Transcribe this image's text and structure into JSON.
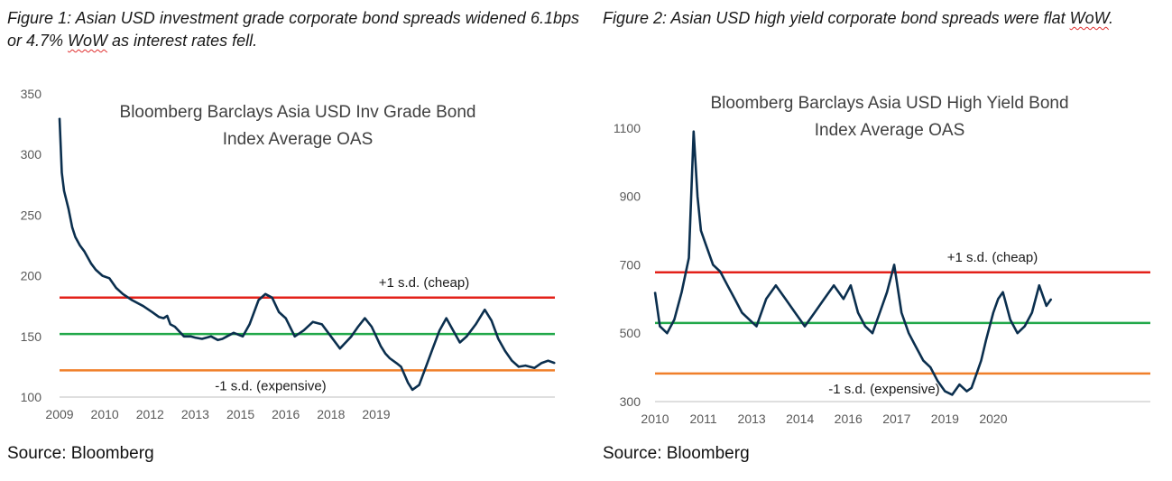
{
  "figure1": {
    "caption_text": "Figure 1: Asian USD investment grade corporate bond spreads widened 6.1bps or 4.7% ",
    "caption_wavy": "WoW",
    "caption_tail": " as interest rates fell.",
    "source": "Source: Bloomberg"
  },
  "figure2": {
    "caption_text": "Figure 2: Asian USD high yield corporate bond spreads were flat ",
    "caption_wavy": "WoW",
    "caption_tail": ".",
    "source": "Source: Bloomberg"
  },
  "colors": {
    "series": "#0b2f4e",
    "plus1sd": "#e32119",
    "mean": "#21a84a",
    "minus1sd": "#f07f2a",
    "tick": "#595959"
  },
  "chart_data": [
    {
      "type": "line",
      "title_lines": [
        "Bloomberg  Barclays Asia USD Inv Grade Bond",
        "Index Average OAS"
      ],
      "xlim": [
        2009,
        2019.95
      ],
      "ylim": [
        100,
        350
      ],
      "x_ticks": [
        {
          "label": "2009",
          "x": 2009.0
        },
        {
          "label": "2010",
          "x": 2010.0
        },
        {
          "label": "2012",
          "x": 2011.0
        },
        {
          "label": "2013",
          "x": 2012.0
        },
        {
          "label": "2015",
          "x": 2013.0
        },
        {
          "label": "2016",
          "x": 2014.0
        },
        {
          "label": "2018",
          "x": 2015.0
        },
        {
          "label": "2019",
          "x": 2016.0
        }
      ],
      "y_ticks": [
        100,
        150,
        200,
        250,
        300,
        350
      ],
      "series": [
        {
          "x": [
            2009.0,
            2009.05,
            2009.1,
            2009.2,
            2009.28,
            2009.35,
            2009.45,
            2009.55,
            2009.7,
            2009.8,
            2009.95,
            2010.1,
            2010.25,
            2010.4,
            2010.6,
            2010.85,
            2011.05,
            2011.2,
            2011.3,
            2011.38,
            2011.45,
            2011.55,
            2011.75,
            2011.9,
            2012.0,
            2012.15,
            2012.35,
            2012.5,
            2012.6,
            2012.7,
            2012.85,
            2013.05,
            2013.2,
            2013.4,
            2013.55,
            2013.7,
            2013.85,
            2014.0,
            2014.2,
            2014.4,
            2014.6,
            2014.8,
            2015.0,
            2015.2,
            2015.45,
            2015.6,
            2015.75,
            2015.9,
            2016.0,
            2016.1,
            2016.2,
            2016.3,
            2016.45,
            2016.55,
            2016.7,
            2016.8,
            2016.95,
            2017.1,
            2017.25,
            2017.4,
            2017.55,
            2017.7,
            2017.85,
            2018.0,
            2018.2,
            2018.4,
            2018.55,
            2018.7,
            2018.85,
            2019.0,
            2019.15,
            2019.3,
            2019.5,
            2019.65,
            2019.8,
            2019.95
          ],
          "y": [
            330,
            285,
            270,
            255,
            240,
            232,
            225,
            220,
            210,
            205,
            200,
            198,
            190,
            185,
            180,
            175,
            170,
            166,
            165,
            167,
            160,
            158,
            150,
            150,
            149,
            148,
            150,
            147,
            148,
            150,
            153,
            150,
            160,
            180,
            185,
            182,
            170,
            165,
            150,
            155,
            162,
            160,
            150,
            140,
            150,
            158,
            165,
            158,
            150,
            142,
            136,
            132,
            128,
            125,
            112,
            106,
            110,
            125,
            140,
            155,
            165,
            155,
            145,
            150,
            160,
            172,
            163,
            148,
            138,
            130,
            125,
            126,
            124,
            128,
            130,
            128
          ],
          "values_note": "approximate"
        }
      ],
      "reference_lines": [
        {
          "label": "+1 s.d. (cheap)",
          "y": 182
        },
        {
          "label": "",
          "y": 152
        },
        {
          "label": "-1 s.d. (expensive)",
          "y": 122
        }
      ]
    },
    {
      "type": "line",
      "title_lines": [
        "Bloomberg  Barclays Asia USD High Yield Bond",
        "Index Average OAS"
      ],
      "xlim": [
        2010,
        2020.25
      ],
      "ylim": [
        300,
        1200
      ],
      "x_ticks": [
        {
          "label": "2010",
          "x": 2010.0
        },
        {
          "label": "2011",
          "x": 2011.0
        },
        {
          "label": "2013",
          "x": 2012.0
        },
        {
          "label": "2014",
          "x": 2013.0
        },
        {
          "label": "2016",
          "x": 2014.0
        },
        {
          "label": "2017",
          "x": 2015.0
        },
        {
          "label": "2019",
          "x": 2016.0
        },
        {
          "label": "2020",
          "x": 2017.0
        }
      ],
      "y_ticks": [
        300,
        500,
        700,
        900,
        1100
      ],
      "series": [
        {
          "x": [
            2010.0,
            2010.1,
            2010.25,
            2010.4,
            2010.55,
            2010.7,
            2010.8,
            2010.88,
            2010.95,
            2011.05,
            2011.2,
            2011.35,
            2011.5,
            2011.65,
            2011.8,
            2011.95,
            2012.1,
            2012.3,
            2012.5,
            2012.7,
            2012.9,
            2013.1,
            2013.3,
            2013.5,
            2013.7,
            2013.9,
            2014.05,
            2014.2,
            2014.35,
            2014.5,
            2014.65,
            2014.8,
            2014.95,
            2015.1,
            2015.25,
            2015.4,
            2015.55,
            2015.7,
            2015.85,
            2016.0,
            2016.15,
            2016.3,
            2016.45,
            2016.55,
            2016.65,
            2016.75,
            2016.85,
            2017.0,
            2017.1,
            2017.2,
            2017.35,
            2017.5,
            2017.65,
            2017.8,
            2017.95,
            2018.1,
            2018.2
          ],
          "y": [
            620,
            520,
            500,
            540,
            620,
            720,
            1090,
            900,
            800,
            760,
            700,
            680,
            640,
            600,
            560,
            540,
            520,
            600,
            640,
            600,
            560,
            520,
            560,
            600,
            640,
            600,
            640,
            560,
            520,
            500,
            560,
            620,
            700,
            560,
            500,
            460,
            420,
            400,
            360,
            330,
            320,
            350,
            330,
            340,
            380,
            420,
            480,
            560,
            600,
            620,
            540,
            500,
            520,
            560,
            640,
            580,
            600
          ],
          "values_note": "approximate"
        }
      ],
      "reference_lines": [
        {
          "label": "+1 s.d. (cheap)",
          "y": 678
        },
        {
          "label": "",
          "y": 530
        },
        {
          "label": "-1 s.d. (expensive)",
          "y": 382
        }
      ]
    }
  ]
}
